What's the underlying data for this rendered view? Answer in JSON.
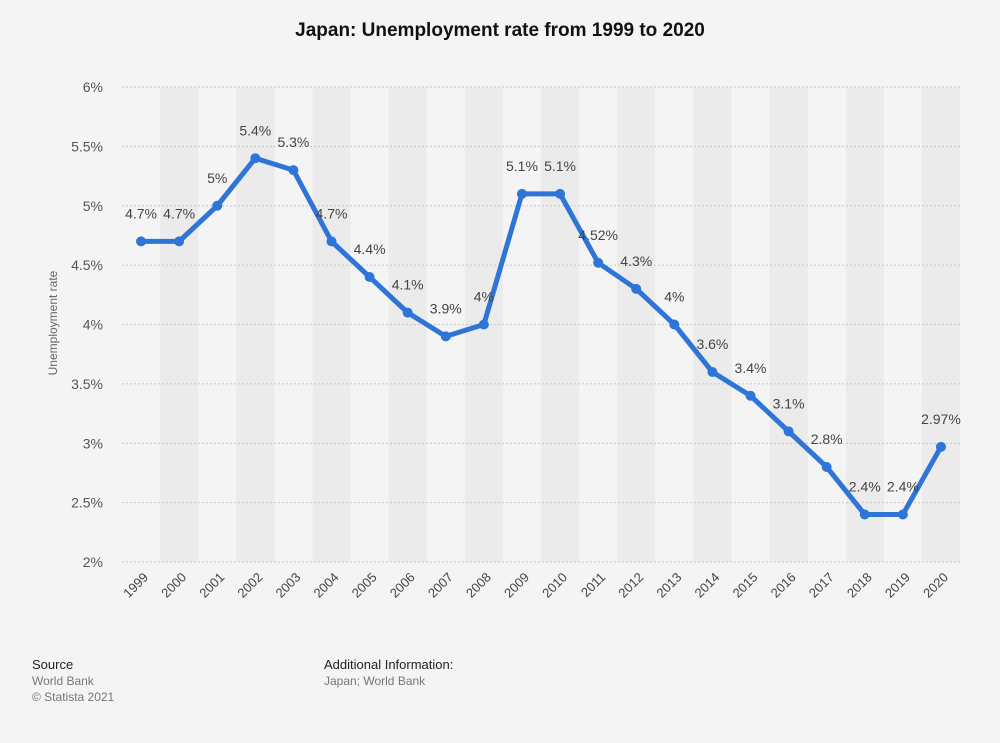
{
  "chart_data": {
    "type": "line",
    "title": "Japan: Unemployment rate from 1999 to 2020",
    "xlabel": "",
    "ylabel": "Unemployment rate",
    "categories": [
      "1999",
      "2000",
      "2001",
      "2002",
      "2003",
      "2004",
      "2005",
      "2006",
      "2007",
      "2008",
      "2009",
      "2010",
      "2011",
      "2012",
      "2013",
      "2014",
      "2015",
      "2016",
      "2017",
      "2018",
      "2019",
      "2020"
    ],
    "values": [
      4.7,
      4.7,
      5.0,
      5.4,
      5.3,
      4.7,
      4.4,
      4.1,
      3.9,
      4.0,
      5.1,
      5.1,
      4.52,
      4.3,
      4.0,
      3.6,
      3.4,
      3.1,
      2.8,
      2.4,
      2.4,
      2.97
    ],
    "data_labels": [
      "4.7%",
      "4.7%",
      "5%",
      "5.4%",
      "5.3%",
      "4.7%",
      "4.4%",
      "4.1%",
      "3.9%",
      "4%",
      "5.1%",
      "5.1%",
      "4.52%",
      "4.3%",
      "4%",
      "3.6%",
      "3.4%",
      "3.1%",
      "2.8%",
      "2.4%",
      "2.4%",
      "2.97%"
    ],
    "ylim": [
      2,
      6
    ],
    "yticks": [
      2,
      2.5,
      3,
      3.5,
      4,
      4.5,
      5,
      5.5,
      6
    ],
    "ytick_labels": [
      "2%",
      "2.5%",
      "3%",
      "3.5%",
      "4%",
      "4.5%",
      "5%",
      "5.5%",
      "6%"
    ],
    "grid": true,
    "colors": {
      "line": "#2f75d8",
      "band": "#ebebeb",
      "plot_bg": "#f4f4f4",
      "gridline": "#c8c8c8"
    }
  },
  "footer": {
    "source_heading": "Source",
    "source_line1": "World Bank",
    "source_line2": "© Statista 2021",
    "info_heading": "Additional Information:",
    "info_line": "Japan; World Bank"
  }
}
